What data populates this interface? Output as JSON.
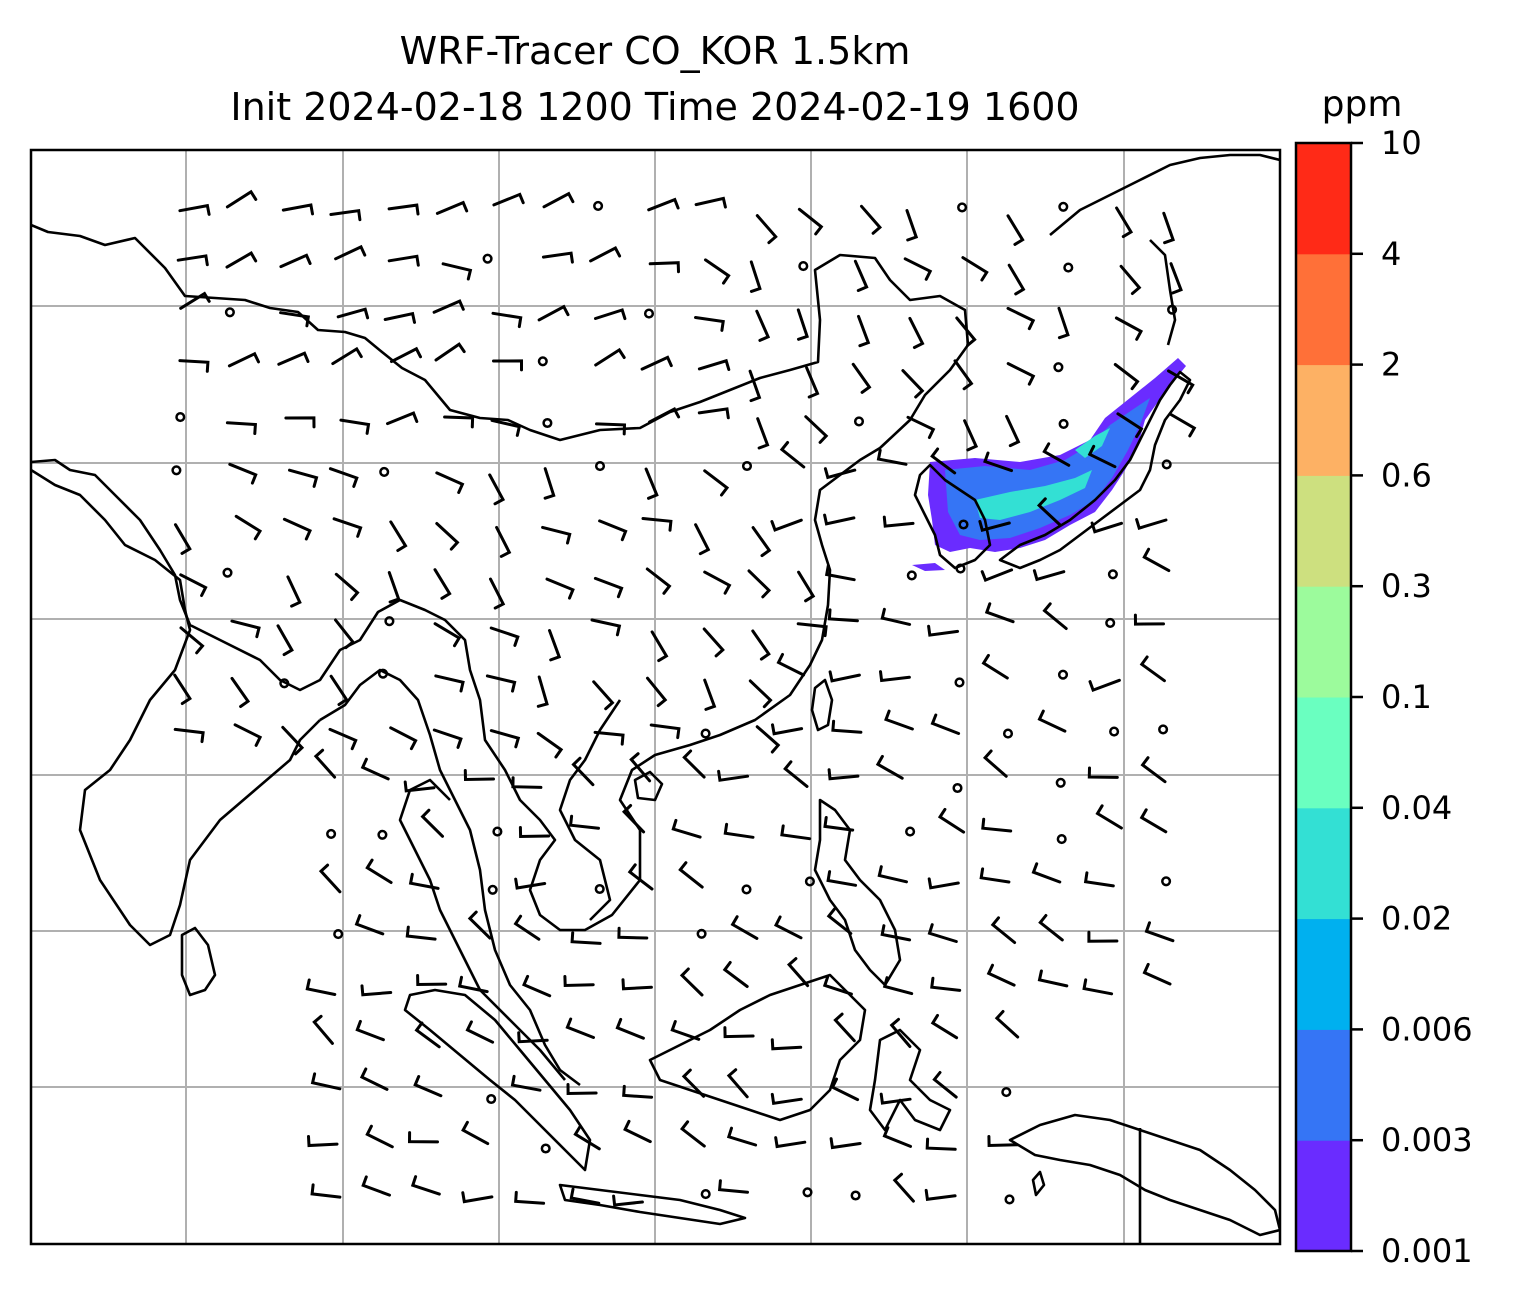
{
  "title": {
    "line1": "WRF-Tracer CO_KOR 1.5km",
    "line2": "Init 2024-02-18 1200 Time 2024-02-19 1600"
  },
  "colorbar": {
    "unit": "ppm",
    "levels": [
      "0.001",
      "0.003",
      "0.006",
      "0.02",
      "0.04",
      "0.1",
      "0.3",
      "0.6",
      "2",
      "4",
      "10"
    ],
    "colors": [
      "#6a2cff",
      "#3575f5",
      "#00b0ef",
      "#33e0d4",
      "#6affc0",
      "#9cfb9c",
      "#cde07f",
      "#fdb164",
      "#ff7038",
      "#ff2a17"
    ]
  },
  "map": {
    "gridline_color": "#b0b0b0",
    "coastline_color": "#000000",
    "plume_color_low": "#6a2cff",
    "plume_color_mid": "#3575f5",
    "plume_color_high": "#33e0d4"
  }
}
